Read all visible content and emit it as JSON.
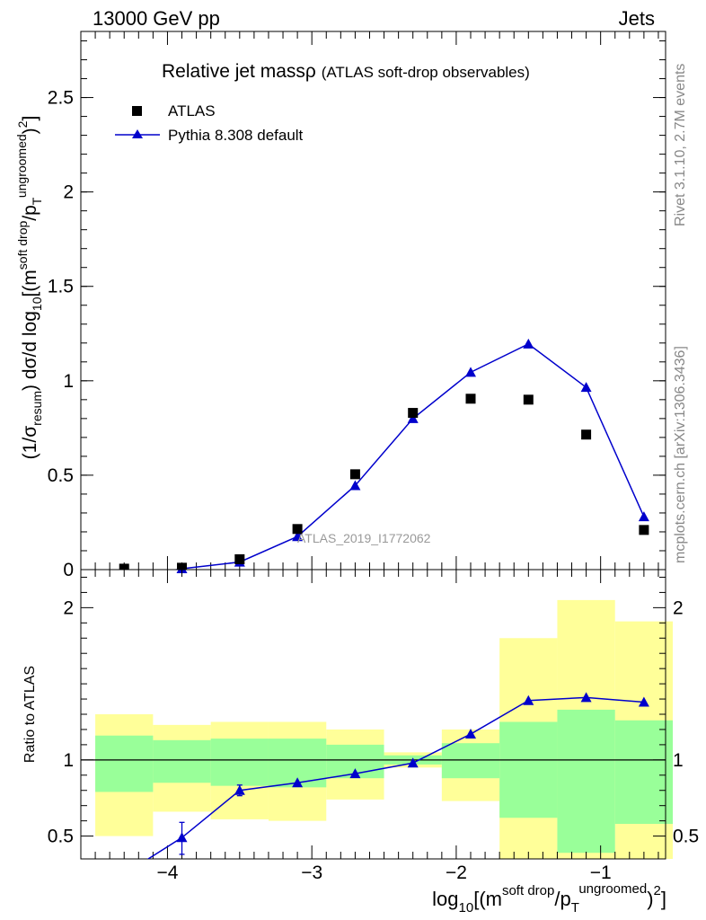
{
  "header": {
    "left": "13000 GeV pp",
    "right": "Jets"
  },
  "side_labels": {
    "rivet": "Rivet 3.1.10,  2.7M events",
    "mcplots": "mcplots.cern.ch [arXiv:1306.3436]"
  },
  "chart_data": [
    {
      "type": "scatter",
      "title": "Relative jet massρ",
      "subtitle": "(ATLAS soft-drop observables)",
      "analysis_label": "ATLAS_2019_I1772062",
      "ylabel": "(1/σ_resum) dσ/d log10[(m^soft drop/pT^ungroomed)^2]",
      "xlim": [
        -4.6,
        -0.55
      ],
      "ylim": [
        0,
        2.85
      ],
      "yticks": [
        0,
        0.5,
        1,
        1.5,
        2,
        2.5
      ],
      "ytick_labels": [
        "0",
        "0.5",
        "1",
        "1.5",
        "2",
        "2.5"
      ],
      "legend": [
        "ATLAS",
        "Pythia 8.308 default"
      ],
      "legend_position": "top-left",
      "x": [
        -4.3,
        -3.9,
        -3.5,
        -3.1,
        -2.7,
        -2.3,
        -1.9,
        -1.5,
        -1.1,
        -0.7
      ],
      "series": [
        {
          "name": "ATLAS",
          "marker": "square",
          "color": "#000000",
          "values": [
            0.005,
            0.01,
            0.055,
            0.215,
            0.505,
            0.83,
            0.905,
            0.9,
            0.715,
            0.21
          ]
        },
        {
          "name": "Pythia 8.308 default",
          "marker": "triangle",
          "color": "#0000cc",
          "values": [
            -0.05,
            0.005,
            0.04,
            0.175,
            0.445,
            0.8,
            1.045,
            1.195,
            0.965,
            0.28
          ]
        }
      ]
    },
    {
      "type": "line",
      "ylabel": "Ratio to ATLAS",
      "xlabel": "log10[(m^soft drop/pT^ungroomed)^2]",
      "xlim": [
        -4.6,
        -0.55
      ],
      "ylim": [
        0.35,
        2.25
      ],
      "xticks": [
        -4,
        -3,
        -2,
        -1
      ],
      "xtick_labels": [
        "−4",
        "−3",
        "−2",
        "−1"
      ],
      "yticks": [
        0.5,
        1,
        2
      ],
      "ytick_labels": [
        "0.5",
        "1",
        "2"
      ],
      "reference_line": 1,
      "bin_edges": [
        -4.5,
        -4.1,
        -3.7,
        -3.3,
        -2.9,
        -2.5,
        -2.1,
        -1.7,
        -1.3,
        -0.9,
        -0.5
      ],
      "band_inner": [
        [
          0.79,
          1.16
        ],
        [
          0.85,
          1.13
        ],
        [
          0.83,
          1.14
        ],
        [
          0.82,
          1.14
        ],
        [
          0.88,
          1.1
        ],
        [
          0.97,
          1.03
        ],
        [
          0.88,
          1.11
        ],
        [
          0.62,
          1.25
        ],
        [
          0.39,
          1.33
        ],
        [
          0.58,
          1.26
        ]
      ],
      "band_outer": [
        [
          0.5,
          1.3
        ],
        [
          0.66,
          1.23
        ],
        [
          0.61,
          1.25
        ],
        [
          0.6,
          1.25
        ],
        [
          0.74,
          1.2
        ],
        [
          0.95,
          1.05
        ],
        [
          0.73,
          1.2
        ],
        [
          0.35,
          1.8
        ],
        [
          0.35,
          2.05
        ],
        [
          0.35,
          1.91
        ]
      ],
      "series": [
        {
          "name": "Pythia 8.308 default",
          "marker": "triangle",
          "color": "#0000cc",
          "x": [
            -4.3,
            -3.9,
            -3.5,
            -3.1,
            -2.7,
            -2.3,
            -1.9,
            -1.5,
            -1.1,
            -0.7
          ],
          "values": [
            0.25,
            0.49,
            0.8,
            0.85,
            0.91,
            0.98,
            1.17,
            1.39,
            1.41,
            1.38
          ],
          "err_low": [
            0,
            0.11,
            0.035,
            0,
            0,
            0,
            0,
            0,
            0,
            0
          ],
          "err_high": [
            0,
            0.1,
            0.035,
            0,
            0,
            0,
            0,
            0,
            0,
            0
          ]
        }
      ]
    }
  ],
  "colors": {
    "band_inner": "#99ff99",
    "band_outer": "#ffff99",
    "pythia": "#0000cc",
    "atlas": "#000000",
    "side_text": "#888888"
  }
}
